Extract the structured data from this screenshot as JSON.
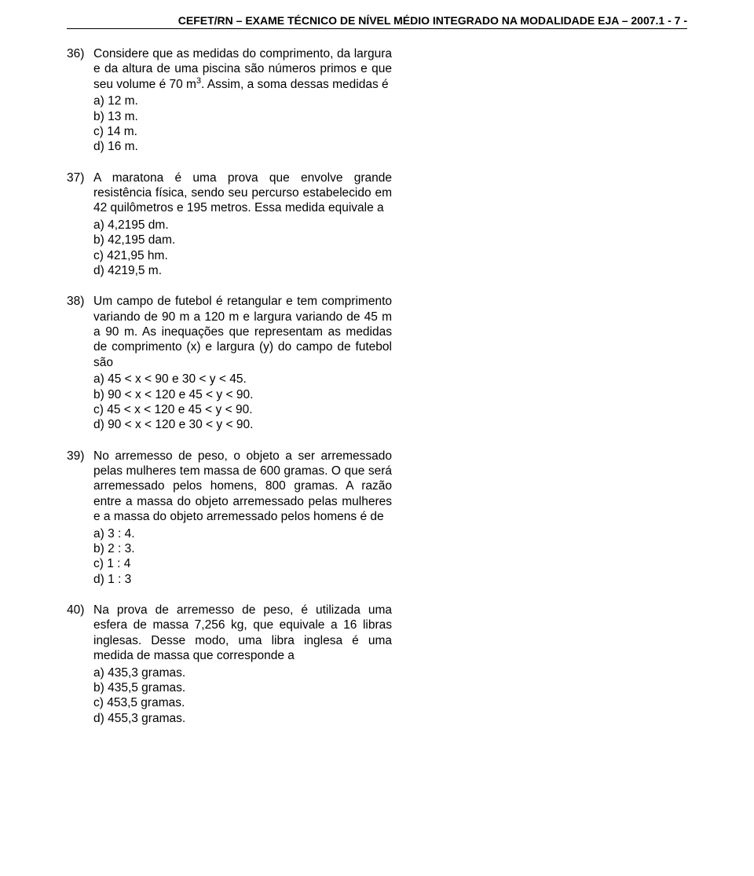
{
  "header": {
    "text": "CEFET/RN – EXAME TÉCNICO DE NÍVEL MÉDIO INTEGRADO NA MODALIDADE EJA – 2007.1  - 7 -"
  },
  "questions": [
    {
      "num": "36)",
      "stem_pre": "Considere que as medidas do comprimento, da largura e da altura de uma piscina são números primos e que seu volume é 70 m",
      "sup": "3",
      "stem_post": ". Assim, a soma dessas medidas é",
      "opts": [
        "a)  12 m.",
        "b)  13 m.",
        "c)  14 m.",
        "d)  16 m."
      ]
    },
    {
      "num": "37)",
      "stem": "A maratona é uma prova que envolve grande resistência física, sendo seu percurso estabelecido em 42 quilômetros e 195 metros. Essa medida equivale a",
      "opts": [
        "a)  4,2195 dm.",
        "b)  42,195 dam.",
        "c)  421,95 hm.",
        "d)  4219,5 m."
      ]
    },
    {
      "num": "38)",
      "stem": "Um campo de futebol é retangular e tem comprimento variando de 90 m a 120 m e largura variando de 45 m a 90 m. As inequações que representam as medidas de comprimento (x) e largura (y) do campo de futebol são",
      "opts": [
        "a)  45 < x < 90     e 30 < y < 45.",
        "b)  90 < x < 120    e 45 < y < 90.",
        "c)  45 < x < 120    e 45 < y < 90.",
        "d)  90 < x < 120    e 30 < y < 90."
      ]
    },
    {
      "num": "39)",
      "stem": "No arremesso de peso, o objeto a ser arremessado pelas mulheres tem massa de 600 gramas. O que será arremessado pelos homens, 800 gramas. A razão entre a massa do objeto arremessado pelas mulheres e a massa do objeto arremessado pelos homens é de",
      "opts": [
        "a)  3 : 4.",
        "b)  2 : 3.",
        "c)  1 : 4",
        "d)  1 : 3"
      ]
    },
    {
      "num": "40)",
      "stem": "Na prova de arremesso de peso, é utilizada uma esfera de massa 7,256 kg, que equivale a 16 libras inglesas. Desse modo, uma libra inglesa é uma medida de massa que corresponde a",
      "opts": [
        "a)  435,3 gramas.",
        "b)  435,5 gramas.",
        "c)  453,5 gramas.",
        "d)  455,3 gramas."
      ]
    }
  ]
}
